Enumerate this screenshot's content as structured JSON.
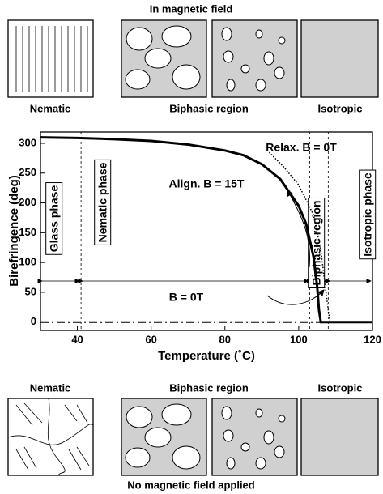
{
  "top": {
    "title": "In magnetic field",
    "labels": [
      "Nematic",
      "Biphasic region",
      "Isotropic"
    ]
  },
  "bottom": {
    "title": "No magnetic field applied",
    "labels": [
      "Nematic",
      "Biphasic region",
      "Isotropic"
    ]
  },
  "chart_data": {
    "type": "line",
    "xlabel": "Temperature (˚C)",
    "ylabel": "Birefringence (deg)",
    "xlim": [
      30,
      120
    ],
    "ylim": [
      -14,
      319
    ],
    "xticks": [
      40,
      60,
      80,
      100,
      120
    ],
    "yticks": [
      0,
      50,
      100,
      150,
      200,
      250,
      300
    ],
    "vlines": [
      41,
      103,
      108
    ],
    "annotations": [
      "Glass phase",
      "Nematic phase",
      "Biphasic region",
      "Isotropic phase"
    ],
    "series": [
      {
        "name": "Align. B = 15T",
        "color": "#000000",
        "style": "solid",
        "x": [
          30,
          40,
          50,
          60,
          70,
          80,
          85,
          90,
          95,
          100,
          102,
          104,
          105,
          105.5,
          106,
          110,
          120
        ],
        "values": [
          310,
          309,
          307,
          304,
          298,
          288,
          280,
          265,
          240,
          195,
          165,
          110,
          60,
          20,
          0,
          0,
          0
        ]
      },
      {
        "name": "Relax. B = 0T",
        "color": "#000000",
        "style": "dotted",
        "x": [
          92,
          96,
          100,
          104,
          106,
          107,
          108,
          108.5
        ],
        "values": [
          285,
          260,
          230,
          180,
          120,
          70,
          20,
          0
        ]
      },
      {
        "name": "B = 0T",
        "color": "#000000",
        "style": "dashdot",
        "x": [
          30,
          120
        ],
        "values": [
          0,
          0
        ]
      }
    ]
  }
}
